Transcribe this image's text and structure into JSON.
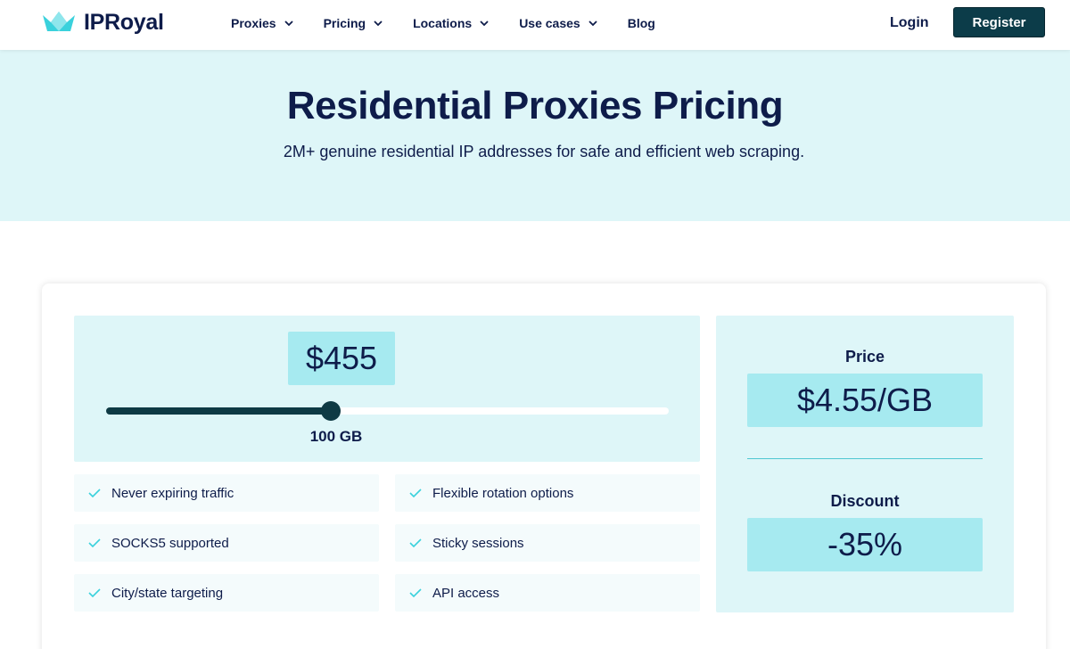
{
  "brand": {
    "name": "IPRoyal",
    "logo_icon": "crown-icon",
    "accent": "#3ad1dc"
  },
  "nav": {
    "items": [
      {
        "label": "Proxies",
        "has_dropdown": true
      },
      {
        "label": "Pricing",
        "has_dropdown": true
      },
      {
        "label": "Locations",
        "has_dropdown": true
      },
      {
        "label": "Use cases",
        "has_dropdown": true
      },
      {
        "label": "Blog",
        "has_dropdown": false
      }
    ],
    "login_label": "Login",
    "register_label": "Register"
  },
  "hero": {
    "title": "Residential Proxies Pricing",
    "subtitle": "2M+ genuine residential IP addresses for safe and efficient web scraping."
  },
  "calculator": {
    "total_price": "$455",
    "slider_value_label": "100 GB",
    "slider_fraction": 0.4
  },
  "features": [
    "Never expiring traffic",
    "Flexible rotation options",
    "SOCKS5 supported",
    "Sticky sessions",
    "City/state targeting",
    "API access"
  ],
  "summary": {
    "price_label": "Price",
    "price_value": "$4.55/GB",
    "discount_label": "Discount",
    "discount_value": "-35%"
  },
  "colors": {
    "navy_text": "#0e1c4a",
    "hero_bg": "#def6f8",
    "badge_bg": "#a6eaf0",
    "button_bg": "#0c3c49",
    "check": "#3ad1dc"
  }
}
